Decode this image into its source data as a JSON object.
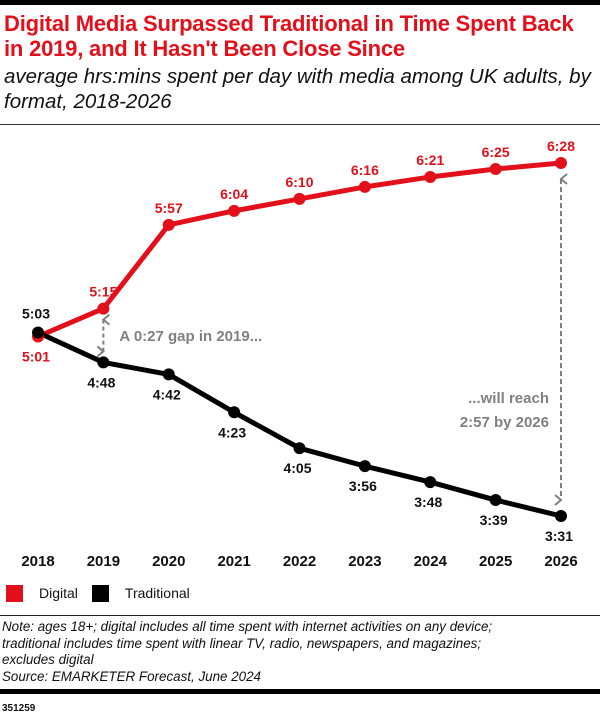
{
  "header": {
    "title": "Digital Media Surpassed Traditional in Time Spent Back in 2019, and It Hasn't Been Close Since",
    "subtitle": "average hrs:mins spent per day with media among UK adults, by format, 2018-2026"
  },
  "colors": {
    "digital": "#e3101b",
    "traditional": "#000000",
    "annotation": "#808080"
  },
  "chart_data": {
    "type": "line",
    "title": "Digital Media Surpassed Traditional in Time Spent Back in 2019, and It Hasn't Been Close Since",
    "subtitle": "average hrs:mins spent per day with media among UK adults, by format, 2018-2026",
    "xlabel": "",
    "ylabel": "",
    "grid": false,
    "legend_position": "bottom-left",
    "categories": [
      "2018",
      "2019",
      "2020",
      "2021",
      "2022",
      "2023",
      "2024",
      "2025",
      "2026"
    ],
    "series": [
      {
        "name": "Digital",
        "color": "#e3101b",
        "values_minutes": [
          301,
          315,
          357,
          364,
          370,
          376,
          381,
          385,
          388
        ],
        "labels": [
          "5:01",
          "5:15",
          "5:57",
          "6:04",
          "6:10",
          "6:16",
          "6:21",
          "6:25",
          "6:28"
        ]
      },
      {
        "name": "Traditional",
        "color": "#000000",
        "values_minutes": [
          303,
          288,
          282,
          263,
          245,
          236,
          228,
          219,
          211
        ],
        "labels": [
          "5:03",
          "4:48",
          "4:42",
          "4:23",
          "4:05",
          "3:56",
          "3:48",
          "3:39",
          "3:31"
        ]
      }
    ],
    "annotations": [
      {
        "text": "A 0:27 gap in 2019...",
        "year": "2019"
      },
      {
        "text_lines": [
          "...will reach",
          "2:57 by 2026"
        ],
        "year": "2026"
      }
    ]
  },
  "legend": {
    "items": [
      {
        "label": "Digital",
        "color": "#e3101b"
      },
      {
        "label": "Traditional",
        "color": "#000000"
      }
    ]
  },
  "footer": {
    "note_lines": [
      "Note: ages 18+; digital includes all time spent with internet activities on any device;",
      "traditional includes time spent with linear TV, radio, newspapers, and magazines;",
      "excludes digital",
      "Source: EMARKETER Forecast, June 2024"
    ],
    "chart_id": "351259"
  }
}
